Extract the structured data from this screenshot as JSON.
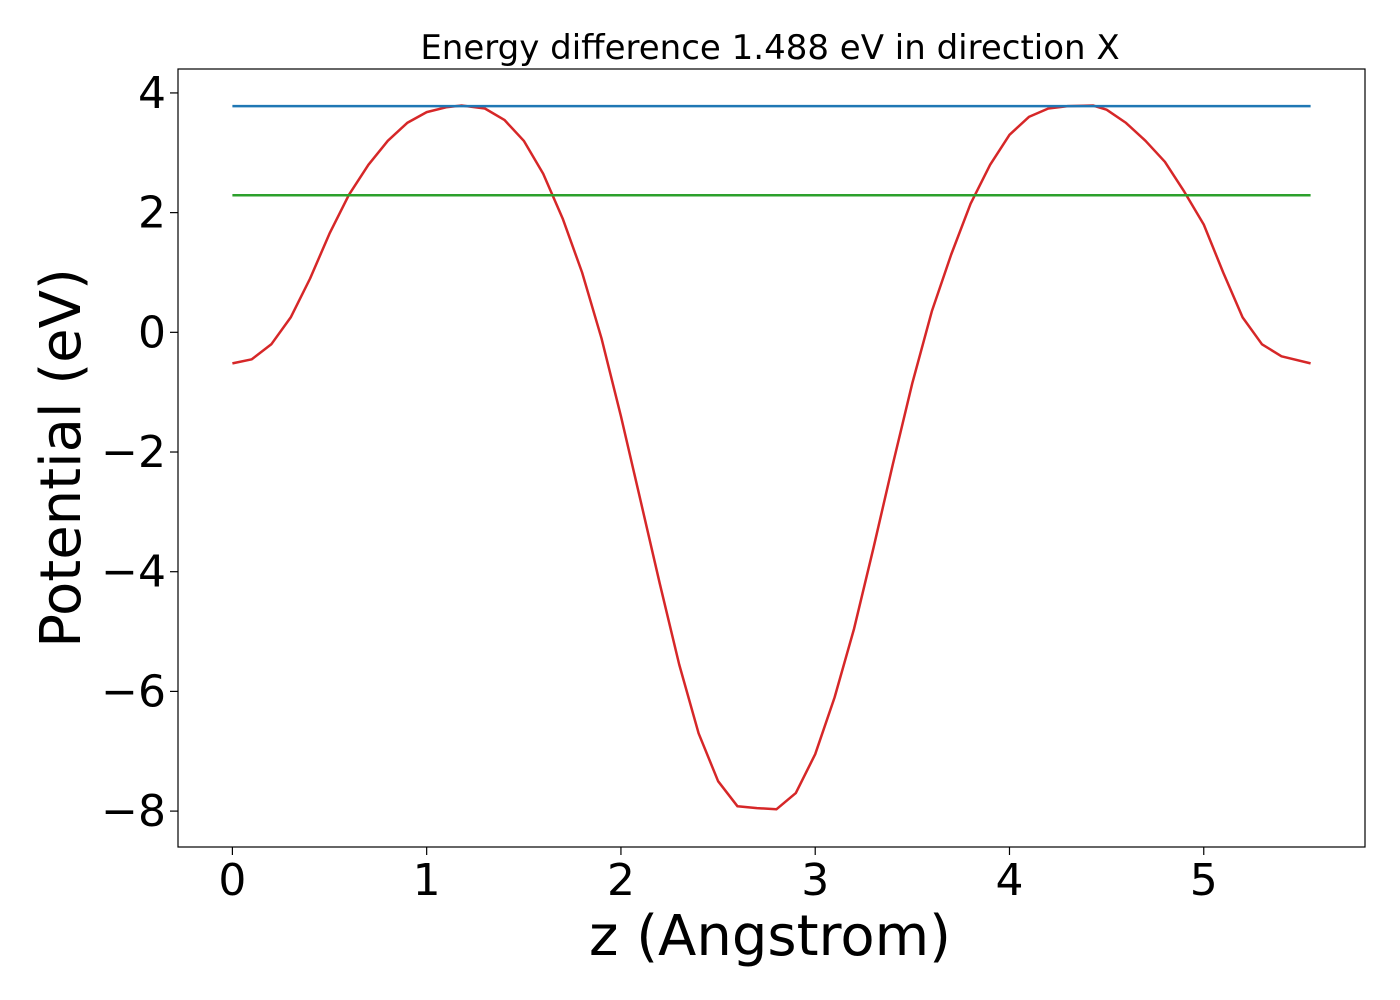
{
  "chart_data": {
    "type": "line",
    "title": "Energy difference 1.488 eV in direction X",
    "xlabel": "z (Angstrom)",
    "ylabel": "Potential (eV)",
    "xlim": [
      -0.28,
      5.83
    ],
    "ylim": [
      -8.6,
      4.4
    ],
    "xticks": [
      0,
      1,
      2,
      3,
      4,
      5
    ],
    "yticks": [
      4,
      2,
      0,
      -2,
      -4,
      -6,
      -8
    ],
    "xtick_labels": [
      "0",
      "1",
      "2",
      "3",
      "4",
      "5"
    ],
    "ytick_labels": [
      "4",
      "2",
      "0",
      "−2",
      "−4",
      "−6",
      "−8"
    ],
    "grid": false,
    "legend": "none",
    "series": [
      {
        "color": "#d62728",
        "x": [
          0.0,
          0.1,
          0.2,
          0.3,
          0.4,
          0.5,
          0.6,
          0.7,
          0.8,
          0.9,
          1.0,
          1.1,
          1.18,
          1.3,
          1.4,
          1.5,
          1.6,
          1.7,
          1.8,
          1.9,
          2.0,
          2.1,
          2.2,
          2.3,
          2.4,
          2.5,
          2.6,
          2.7,
          2.8,
          2.9,
          3.0,
          3.1,
          3.2,
          3.3,
          3.4,
          3.5,
          3.6,
          3.7,
          3.8,
          3.9,
          4.0,
          4.1,
          4.2,
          4.3,
          4.43,
          4.5,
          4.6,
          4.7,
          4.8,
          4.9,
          5.0,
          5.1,
          5.2,
          5.3,
          5.4,
          5.55
        ],
        "y": [
          -0.52,
          -0.45,
          -0.2,
          0.25,
          0.9,
          1.65,
          2.3,
          2.8,
          3.2,
          3.5,
          3.68,
          3.76,
          3.79,
          3.74,
          3.55,
          3.2,
          2.65,
          1.9,
          1.0,
          -0.1,
          -1.4,
          -2.8,
          -4.2,
          -5.55,
          -6.7,
          -7.5,
          -7.92,
          -7.95,
          -7.97,
          -7.7,
          -7.05,
          -6.1,
          -4.95,
          -3.6,
          -2.2,
          -0.85,
          0.35,
          1.3,
          2.15,
          2.8,
          3.3,
          3.6,
          3.74,
          3.78,
          3.79,
          3.72,
          3.5,
          3.2,
          2.85,
          2.35,
          1.8,
          1.0,
          0.25,
          -0.2,
          -0.4,
          -0.52
        ]
      },
      {
        "color": "#1f77b4",
        "x": [
          0.0,
          5.55
        ],
        "y": [
          3.78,
          3.78
        ]
      },
      {
        "color": "#2ca02c",
        "x": [
          0.0,
          5.55
        ],
        "y": [
          2.29,
          2.29
        ]
      }
    ]
  }
}
